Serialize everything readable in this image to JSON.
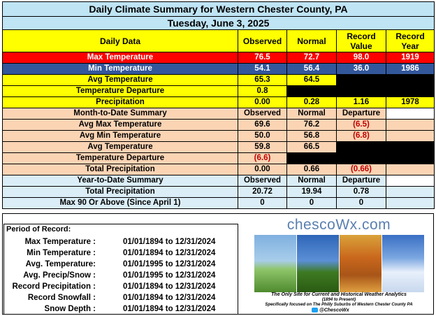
{
  "title": "Daily Climate Summary for Western Chester County, PA",
  "date": "Tuesday, June 3, 2025",
  "daily": {
    "headers": [
      "Daily Data",
      "Observed",
      "Normal",
      "Record Value",
      "Record Year"
    ],
    "rows": [
      {
        "label": "Max Temperature",
        "observed": "76.5",
        "normal": "72.7",
        "record_value": "98.0",
        "record_year": "1919"
      },
      {
        "label": "Min Temperature",
        "observed": "54.1",
        "normal": "56.4",
        "record_value": "36.0",
        "record_year": "1986"
      },
      {
        "label": "Avg Temperature",
        "observed": "65.3",
        "normal": "64.5"
      },
      {
        "label": "Temperature Departure",
        "observed": "0.8"
      },
      {
        "label": "Precipitation",
        "observed": "0.00",
        "normal": "0.28",
        "record_value": "1.16",
        "record_year": "1978"
      }
    ]
  },
  "mtd": {
    "headers": [
      "Month-to-Date Summary",
      "Observed",
      "Normal",
      "Departure"
    ],
    "rows": [
      {
        "label": "Avg Max Temperature",
        "observed": "69.6",
        "normal": "76.2",
        "departure": "(6.5)"
      },
      {
        "label": "Avg Min Temperature",
        "observed": "50.0",
        "normal": "56.8",
        "departure": "(6.8)"
      },
      {
        "label": "Avg Temperature",
        "observed": "59.8",
        "normal": "66.5"
      },
      {
        "label": "Temperature Departure",
        "observed": "(6.6)"
      },
      {
        "label": "Total Precipitation",
        "observed": "0.00",
        "normal": "0.66",
        "departure": "(0.66)"
      }
    ]
  },
  "ytd": {
    "headers": [
      "Year-to-Date Summary",
      "Observed",
      "Normal",
      "Departure"
    ],
    "rows": [
      {
        "label": "Total Precipitation",
        "observed": "20.72",
        "normal": "19.94",
        "departure": "0.78"
      },
      {
        "label": "Max 90 Or Above (Since April 1)",
        "observed": "0",
        "normal": "0",
        "departure": "0"
      }
    ]
  },
  "period_of_record": {
    "title": "Period of Record:",
    "rows": [
      {
        "label": "Max Temperature :",
        "value": "01/01/1894 to 12/31/2024"
      },
      {
        "label": "Min Temperature :",
        "value": "01/01/1894 to 12/31/2024"
      },
      {
        "label": "Avg. Temperature:",
        "value": "01/01/1995 to 12/31/2024"
      },
      {
        "label": "Avg. Precip/Snow :",
        "value": "01/01/1995 to 12/31/2024"
      },
      {
        "label": "Record Precipitation :",
        "value": "01/01/1894 to 12/31/2024"
      },
      {
        "label": "Record Snowfall :",
        "value": "01/01/1894 to 12/31/2024"
      },
      {
        "label": "Snow Depth :",
        "value": "01/01/1894 to 12/31/2024"
      }
    ]
  },
  "logo": {
    "name": "chescoWx.com",
    "tagline1": "The Only Site for Current and Historical Weather Analytics",
    "tagline1b": "(1894 to Present)",
    "tagline2": "Specifically focused on The Philly Suburbs of Western Chester County PA",
    "twitter": "@ChescoWx",
    "twitter_icon": "twitter-bird-icon"
  },
  "colors": {
    "title_bg": "#bfe4f4",
    "header_bg": "#ffff00",
    "max_row": "#ff0000",
    "min_row": "#33579b",
    "mtd_bg": "#fbd4b4",
    "ytd_bg": "#dbeef7",
    "departure_text": "#c00000"
  }
}
